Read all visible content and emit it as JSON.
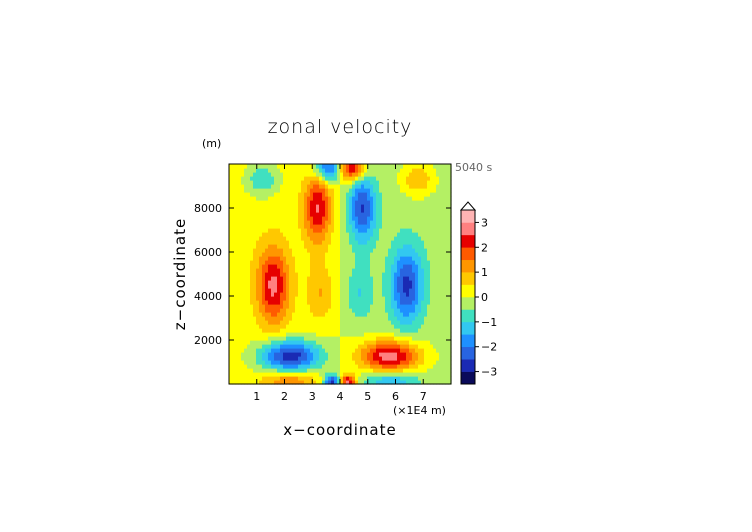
{
  "chart_data": {
    "type": "heatmap",
    "title": "zonal velocity",
    "time_label": "5040 s",
    "xlabel": "x−coordinate",
    "ylabel": "z−coordinate",
    "x_unit_label": "(×1E4 m)",
    "y_unit_label": "(m)",
    "xlim": [
      0,
      8
    ],
    "ylim": [
      0,
      10000
    ],
    "x_ticks": [
      1,
      2,
      3,
      4,
      5,
      6,
      7
    ],
    "x_tick_labels": [
      "1",
      "2",
      "3",
      "4",
      "5",
      "6",
      "7"
    ],
    "y_ticks": [
      2000,
      4000,
      6000,
      8000
    ],
    "y_tick_labels": [
      "2000",
      "4000",
      "6000",
      "8000"
    ],
    "colorbar": {
      "min": -3.5,
      "max": 3.5,
      "step": 0.5,
      "ticks": [
        3,
        2,
        1,
        0,
        -1,
        -2,
        -3
      ],
      "tick_labels": [
        "3",
        "2",
        "1",
        "0",
        "−1",
        "−2",
        "−3"
      ],
      "colors": [
        "#0a0a5a",
        "#1a2ab4",
        "#2864e0",
        "#1e90ff",
        "#32c8f0",
        "#40e0c0",
        "#b4f064",
        "#ffff00",
        "#ffc800",
        "#ff9600",
        "#ff5a00",
        "#e60000",
        "#ff8080",
        "#ffb4b4"
      ]
    },
    "features": [
      {
        "name": "low-level-neg-left",
        "x": 2.2,
        "z": 1300,
        "sx": 0.75,
        "sz": 500,
        "value": -3.0
      },
      {
        "name": "low-level-pos-right",
        "x": 5.8,
        "z": 1300,
        "sx": 0.75,
        "sz": 500,
        "value": 3.0
      },
      {
        "name": "mid-pos-left",
        "x": 1.6,
        "z": 4500,
        "sx": 0.4,
        "sz": 1200,
        "value": 2.4
      },
      {
        "name": "mid-neg-right",
        "x": 6.4,
        "z": 4500,
        "sx": 0.4,
        "sz": 1200,
        "value": -2.4
      },
      {
        "name": "upper-arc-pos-left",
        "x": 3.2,
        "z": 8000,
        "sx": 0.35,
        "sz": 1100,
        "value": 2.4
      },
      {
        "name": "upper-arc-neg-right",
        "x": 4.8,
        "z": 8000,
        "sx": 0.35,
        "sz": 1100,
        "value": -2.4
      },
      {
        "name": "top-neg-left",
        "x": 3.6,
        "z": 9800,
        "sx": 0.35,
        "sz": 400,
        "value": -2.6
      },
      {
        "name": "top-pos-right",
        "x": 4.4,
        "z": 9800,
        "sx": 0.35,
        "sz": 400,
        "value": 2.8
      },
      {
        "name": "top-far-neg-left",
        "x": 1.2,
        "z": 9300,
        "sx": 0.4,
        "sz": 500,
        "value": -1.2
      },
      {
        "name": "top-far-pos-right",
        "x": 6.8,
        "z": 9300,
        "sx": 0.4,
        "sz": 500,
        "value": 1.2
      },
      {
        "name": "surface-pos-left",
        "x": 2.2,
        "z": 150,
        "sx": 0.7,
        "sz": 300,
        "value": 1.4
      },
      {
        "name": "surface-neg-right",
        "x": 5.8,
        "z": 150,
        "sx": 0.7,
        "sz": 300,
        "value": -1.4
      },
      {
        "name": "surface-neg-center",
        "x": 3.7,
        "z": 100,
        "sx": 0.2,
        "sz": 250,
        "value": -2.8
      },
      {
        "name": "surface-pos-center",
        "x": 4.3,
        "z": 100,
        "sx": 0.2,
        "sz": 250,
        "value": 2.8
      },
      {
        "name": "inner-pos-left",
        "x": 3.3,
        "z": 4200,
        "sx": 0.35,
        "sz": 900,
        "value": 0.9
      },
      {
        "name": "inner-neg-right",
        "x": 4.7,
        "z": 4200,
        "sx": 0.35,
        "sz": 900,
        "value": -0.9
      },
      {
        "name": "slight-pos-left-half",
        "x": 2.0,
        "z": 6000,
        "sx": 2.5,
        "sz": 6000,
        "value": 0.35
      },
      {
        "name": "slight-neg-right-half",
        "x": 6.0,
        "z": 6000,
        "sx": 2.5,
        "sz": 6000,
        "value": -0.35
      }
    ]
  }
}
